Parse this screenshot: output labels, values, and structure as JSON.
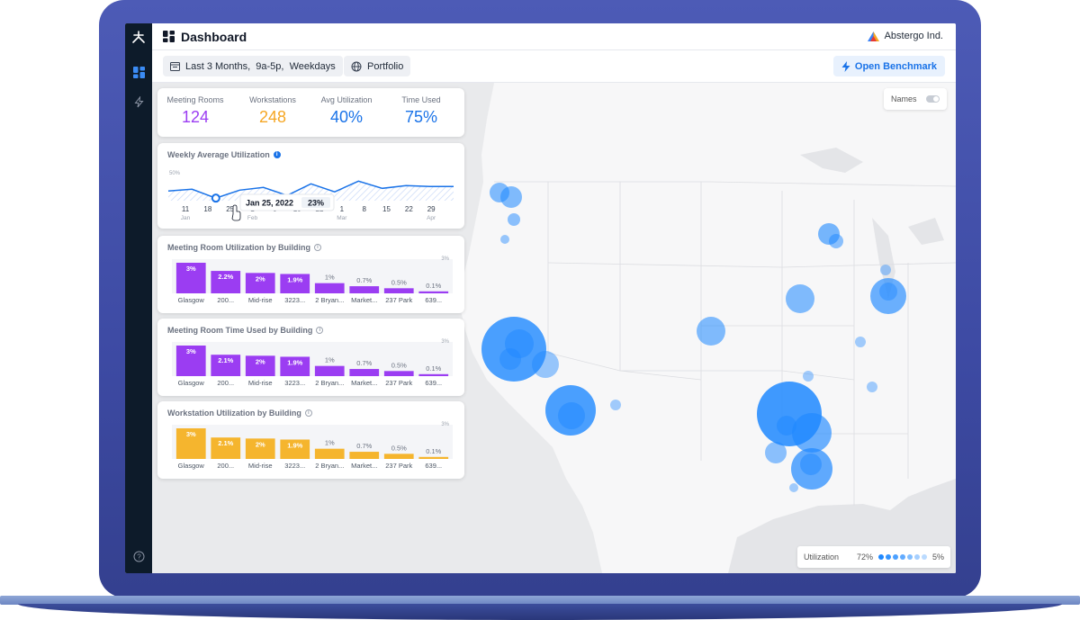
{
  "app": {
    "title": "Dashboard",
    "company": "Abstergo Ind."
  },
  "toolbar": {
    "date_filter": "Last 3 Months,  9a-5p,  Weekdays",
    "portfolio": "Portfolio",
    "benchmark": "Open Benchmark"
  },
  "stats": [
    {
      "label": "Meeting Rooms",
      "value": "124",
      "color": "#9b3df2"
    },
    {
      "label": "Workstations",
      "value": "248",
      "color": "#f5a623"
    },
    {
      "label": "Avg Utilization",
      "value": "40%",
      "color": "#1a73e8"
    },
    {
      "label": "Time Used",
      "value": "75%",
      "color": "#1a73e8"
    }
  ],
  "weekly": {
    "title": "Weekly Average Utilization",
    "ylabel": "50%",
    "tooltip_date": "Jan 25, 2022",
    "tooltip_value": "23%",
    "x_days": [
      "11",
      "18",
      "25",
      "1",
      "8",
      "15",
      "22",
      "1",
      "8",
      "15",
      "22",
      "29"
    ],
    "x_months": [
      "Jan",
      "",
      "",
      "Feb",
      "",
      "",
      "",
      "Mar",
      "",
      "",
      "",
      "Apr"
    ]
  },
  "map": {
    "names_label": "Names",
    "legend_label": "Utilization",
    "legend_max": "72%",
    "legend_min": "5%"
  },
  "chart_data": [
    {
      "type": "line",
      "title": "Weekly Average Utilization",
      "x": [
        "Jan 11",
        "Jan 18",
        "Jan 25",
        "Feb 1",
        "Feb 8",
        "Feb 15",
        "Feb 22",
        "Mar 1",
        "Mar 8",
        "Mar 15",
        "Mar 22",
        "Mar 29",
        "Apr 5"
      ],
      "values": [
        31,
        33,
        23,
        32,
        35,
        26,
        39,
        30,
        42,
        34,
        37,
        36,
        36
      ],
      "ylim": [
        0,
        50
      ]
    },
    {
      "type": "bar",
      "title": "Meeting Room Utilization by Building",
      "color": "#9b3df2",
      "categories": [
        "Glasgow",
        "200...",
        "Mid-rise",
        "3223...",
        "2 Bryan...",
        "Market...",
        "237 Park",
        "639..."
      ],
      "values": [
        3,
        2.2,
        2,
        1.9,
        1,
        0.7,
        0.5,
        0.1
      ],
      "labels": [
        "3%",
        "2.2%",
        "2%",
        "1.9%",
        "1%",
        "0.7%",
        "0.5%",
        "0.1%"
      ],
      "ymax_label": "3%",
      "ylim": [
        0,
        3
      ]
    },
    {
      "type": "bar",
      "title": "Meeting Room Time Used by Building",
      "color": "#9b3df2",
      "categories": [
        "Glasgow",
        "200...",
        "Mid-rise",
        "3223...",
        "2 Bryan...",
        "Market...",
        "237 Park",
        "639..."
      ],
      "values": [
        3,
        2.1,
        2,
        1.9,
        1,
        0.7,
        0.5,
        0.1
      ],
      "labels": [
        "3%",
        "2.1%",
        "2%",
        "1.9%",
        "1%",
        "0.7%",
        "0.5%",
        "0.1%"
      ],
      "ymax_label": "3%",
      "ylim": [
        0,
        3
      ]
    },
    {
      "type": "bar",
      "title": "Workstation Utilization by Building",
      "color": "#f5b52e",
      "categories": [
        "Glasgow",
        "200...",
        "Mid-rise",
        "3223...",
        "2 Bryan...",
        "Market...",
        "237 Park",
        "639..."
      ],
      "values": [
        3,
        2.1,
        2,
        1.9,
        1,
        0.7,
        0.5,
        0.1
      ],
      "labels": [
        "3%",
        "2.1%",
        "2%",
        "1.9%",
        "1%",
        "0.7%",
        "0.5%",
        "0.1%"
      ],
      "ymax_label": "3%",
      "ylim": [
        0,
        3
      ]
    }
  ]
}
